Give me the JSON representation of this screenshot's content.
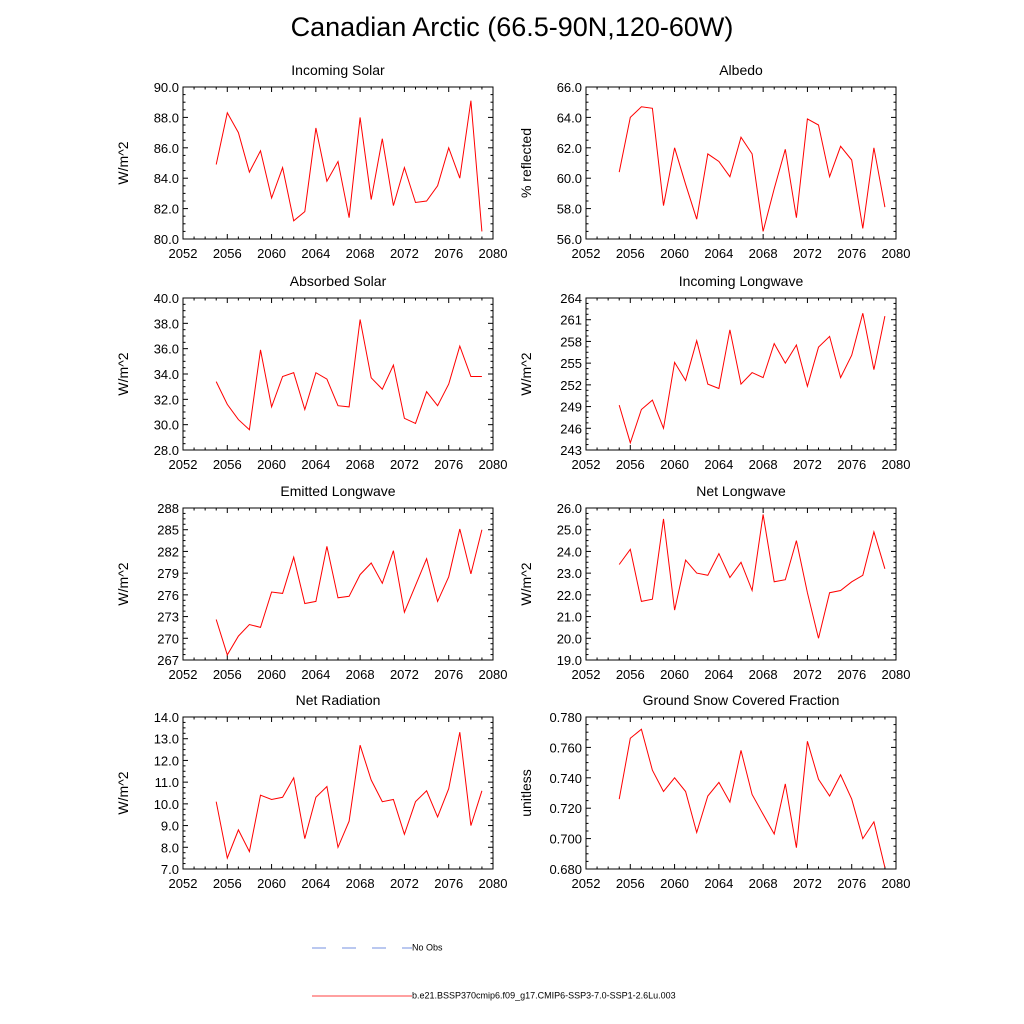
{
  "title": "Canadian Arctic (66.5-90N,120-60W)",
  "colors": {
    "model_line": "#ff0000",
    "obs_line": "#0000cc",
    "axis": "#000000"
  },
  "legend": {
    "obs_label": "No Obs",
    "model_label": "b.e21.BSSP370cmip6.f09_g17.CMIP6-SSP3-7.0-SSP1-2.6Lu.003"
  },
  "chart_data": [
    {
      "type": "line",
      "title": "Incoming Solar",
      "xlabel": "",
      "ylabel": "W/m^2",
      "xlim": [
        2052,
        2080
      ],
      "ylim": [
        80.0,
        90.0
      ],
      "xticks": [
        "2052",
        "2056",
        "2060",
        "2064",
        "2068",
        "2072",
        "2076",
        "2080"
      ],
      "yticks": [
        "80.0",
        "82.0",
        "84.0",
        "86.0",
        "88.0",
        "90.0"
      ],
      "x": [
        2055,
        2056,
        2057,
        2058,
        2059,
        2060,
        2061,
        2062,
        2063,
        2064,
        2065,
        2066,
        2067,
        2068,
        2069,
        2070,
        2071,
        2072,
        2073,
        2074,
        2075,
        2076,
        2077,
        2078,
        2079
      ],
      "series": [
        {
          "values": [
            84.9,
            88.3,
            87.0,
            84.4,
            85.8,
            82.7,
            84.7,
            81.2,
            81.8,
            87.3,
            83.8,
            85.1,
            81.4,
            88.0,
            82.6,
            86.6,
            82.2,
            84.7,
            82.4,
            82.5,
            83.5,
            86.0,
            84.0,
            89.1,
            80.5
          ]
        }
      ]
    },
    {
      "type": "line",
      "title": "Albedo",
      "xlabel": "",
      "ylabel": "% reflected",
      "xlim": [
        2052,
        2080
      ],
      "ylim": [
        56.0,
        66.0
      ],
      "xticks": [
        "2052",
        "2056",
        "2060",
        "2064",
        "2068",
        "2072",
        "2076",
        "2080"
      ],
      "yticks": [
        "56.0",
        "58.0",
        "60.0",
        "62.0",
        "64.0",
        "66.0"
      ],
      "x": [
        2055,
        2056,
        2057,
        2058,
        2059,
        2060,
        2061,
        2062,
        2063,
        2064,
        2065,
        2066,
        2067,
        2068,
        2069,
        2070,
        2071,
        2072,
        2073,
        2074,
        2075,
        2076,
        2077,
        2078,
        2079
      ],
      "series": [
        {
          "values": [
            60.4,
            64.0,
            64.7,
            64.6,
            58.2,
            62.0,
            59.6,
            57.3,
            61.6,
            61.1,
            60.1,
            62.7,
            61.6,
            56.5,
            59.3,
            61.9,
            57.4,
            63.9,
            63.5,
            60.1,
            62.1,
            61.2,
            56.7,
            62.0,
            58.1
          ]
        }
      ]
    },
    {
      "type": "line",
      "title": "Absorbed Solar",
      "xlabel": "",
      "ylabel": "W/m^2",
      "xlim": [
        2052,
        2080
      ],
      "ylim": [
        28.0,
        40.0
      ],
      "xticks": [
        "2052",
        "2056",
        "2060",
        "2064",
        "2068",
        "2072",
        "2076",
        "2080"
      ],
      "yticks": [
        "28.0",
        "30.0",
        "32.0",
        "34.0",
        "36.0",
        "38.0",
        "40.0"
      ],
      "x": [
        2055,
        2056,
        2057,
        2058,
        2059,
        2060,
        2061,
        2062,
        2063,
        2064,
        2065,
        2066,
        2067,
        2068,
        2069,
        2070,
        2071,
        2072,
        2073,
        2074,
        2075,
        2076,
        2077,
        2078,
        2079
      ],
      "series": [
        {
          "values": [
            33.4,
            31.6,
            30.4,
            29.6,
            35.9,
            31.4,
            33.8,
            34.1,
            31.2,
            34.1,
            33.6,
            31.5,
            31.4,
            38.3,
            33.7,
            32.8,
            34.7,
            30.5,
            30.1,
            32.6,
            31.5,
            33.2,
            36.2,
            33.8,
            33.8
          ]
        }
      ]
    },
    {
      "type": "line",
      "title": "Incoming Longwave",
      "xlabel": "",
      "ylabel": "W/m^2",
      "xlim": [
        2052,
        2080
      ],
      "ylim": [
        243,
        264
      ],
      "xticks": [
        "2052",
        "2056",
        "2060",
        "2064",
        "2068",
        "2072",
        "2076",
        "2080"
      ],
      "yticks": [
        "243",
        "246",
        "249",
        "252",
        "255",
        "258",
        "261",
        "264"
      ],
      "x": [
        2055,
        2056,
        2057,
        2058,
        2059,
        2060,
        2061,
        2062,
        2063,
        2064,
        2065,
        2066,
        2067,
        2068,
        2069,
        2070,
        2071,
        2072,
        2073,
        2074,
        2075,
        2076,
        2077,
        2078,
        2079
      ],
      "series": [
        {
          "values": [
            249.2,
            244.0,
            248.6,
            249.9,
            246.0,
            255.1,
            252.6,
            258.1,
            252.1,
            251.5,
            259.6,
            252.1,
            253.7,
            253.0,
            257.7,
            255.0,
            257.5,
            251.8,
            257.2,
            258.7,
            253.0,
            256.1,
            261.9,
            254.1,
            261.5
          ]
        }
      ]
    },
    {
      "type": "line",
      "title": "Emitted Longwave",
      "xlabel": "",
      "ylabel": "W/m^2",
      "xlim": [
        2052,
        2080
      ],
      "ylim": [
        267,
        288
      ],
      "xticks": [
        "2052",
        "2056",
        "2060",
        "2064",
        "2068",
        "2072",
        "2076",
        "2080"
      ],
      "yticks": [
        "267",
        "270",
        "273",
        "276",
        "279",
        "282",
        "285",
        "288"
      ],
      "x": [
        2055,
        2056,
        2057,
        2058,
        2059,
        2060,
        2061,
        2062,
        2063,
        2064,
        2065,
        2066,
        2067,
        2068,
        2069,
        2070,
        2071,
        2072,
        2073,
        2074,
        2075,
        2076,
        2077,
        2078,
        2079
      ],
      "series": [
        {
          "values": [
            272.6,
            267.7,
            270.3,
            271.9,
            271.5,
            276.4,
            276.2,
            281.2,
            274.8,
            275.1,
            282.7,
            275.6,
            275.8,
            278.8,
            280.4,
            277.6,
            282.1,
            273.6,
            277.3,
            281.0,
            275.1,
            278.5,
            285.1,
            278.9,
            285.0
          ]
        }
      ]
    },
    {
      "type": "line",
      "title": "Net Longwave",
      "xlabel": "",
      "ylabel": "W/m^2",
      "xlim": [
        2052,
        2080
      ],
      "ylim": [
        19.0,
        26.0
      ],
      "xticks": [
        "2052",
        "2056",
        "2060",
        "2064",
        "2068",
        "2072",
        "2076",
        "2080"
      ],
      "yticks": [
        "19.0",
        "20.0",
        "21.0",
        "22.0",
        "23.0",
        "24.0",
        "25.0",
        "26.0"
      ],
      "x": [
        2055,
        2056,
        2057,
        2058,
        2059,
        2060,
        2061,
        2062,
        2063,
        2064,
        2065,
        2066,
        2067,
        2068,
        2069,
        2070,
        2071,
        2072,
        2073,
        2074,
        2075,
        2076,
        2077,
        2078,
        2079
      ],
      "series": [
        {
          "values": [
            23.4,
            24.1,
            21.7,
            21.8,
            25.5,
            21.3,
            23.6,
            23.0,
            22.9,
            23.9,
            22.8,
            23.5,
            22.2,
            25.7,
            22.6,
            22.7,
            24.5,
            22.1,
            20.0,
            22.1,
            22.2,
            22.6,
            22.9,
            24.9,
            23.2
          ]
        }
      ]
    },
    {
      "type": "line",
      "title": "Net Radiation",
      "xlabel": "",
      "ylabel": "W/m^2",
      "xlim": [
        2052,
        2080
      ],
      "ylim": [
        7.0,
        14.0
      ],
      "xticks": [
        "2052",
        "2056",
        "2060",
        "2064",
        "2068",
        "2072",
        "2076",
        "2080"
      ],
      "yticks": [
        "7.0",
        "8.0",
        "9.0",
        "10.0",
        "11.0",
        "12.0",
        "13.0",
        "14.0"
      ],
      "x": [
        2055,
        2056,
        2057,
        2058,
        2059,
        2060,
        2061,
        2062,
        2063,
        2064,
        2065,
        2066,
        2067,
        2068,
        2069,
        2070,
        2071,
        2072,
        2073,
        2074,
        2075,
        2076,
        2077,
        2078,
        2079
      ],
      "series": [
        {
          "values": [
            10.1,
            7.5,
            8.8,
            7.8,
            10.4,
            10.2,
            10.3,
            11.2,
            8.4,
            10.3,
            10.8,
            8.0,
            9.2,
            12.7,
            11.1,
            10.1,
            10.2,
            8.6,
            10.1,
            10.6,
            9.4,
            10.7,
            13.3,
            9.0,
            10.6
          ]
        }
      ]
    },
    {
      "type": "line",
      "title": "Ground Snow Covered Fraction",
      "xlabel": "",
      "ylabel": "unitless",
      "xlim": [
        2052,
        2080
      ],
      "ylim": [
        0.68,
        0.78
      ],
      "xticks": [
        "2052",
        "2056",
        "2060",
        "2064",
        "2068",
        "2072",
        "2076",
        "2080"
      ],
      "yticks": [
        "0.680",
        "0.700",
        "0.720",
        "0.740",
        "0.760",
        "0.780"
      ],
      "x": [
        2055,
        2056,
        2057,
        2058,
        2059,
        2060,
        2061,
        2062,
        2063,
        2064,
        2065,
        2066,
        2067,
        2068,
        2069,
        2070,
        2071,
        2072,
        2073,
        2074,
        2075,
        2076,
        2077,
        2078,
        2079
      ],
      "series": [
        {
          "values": [
            0.726,
            0.766,
            0.772,
            0.745,
            0.731,
            0.74,
            0.731,
            0.704,
            0.728,
            0.737,
            0.724,
            0.758,
            0.729,
            0.716,
            0.703,
            0.736,
            0.694,
            0.764,
            0.739,
            0.728,
            0.742,
            0.726,
            0.7,
            0.711,
            0.681
          ]
        }
      ]
    }
  ]
}
